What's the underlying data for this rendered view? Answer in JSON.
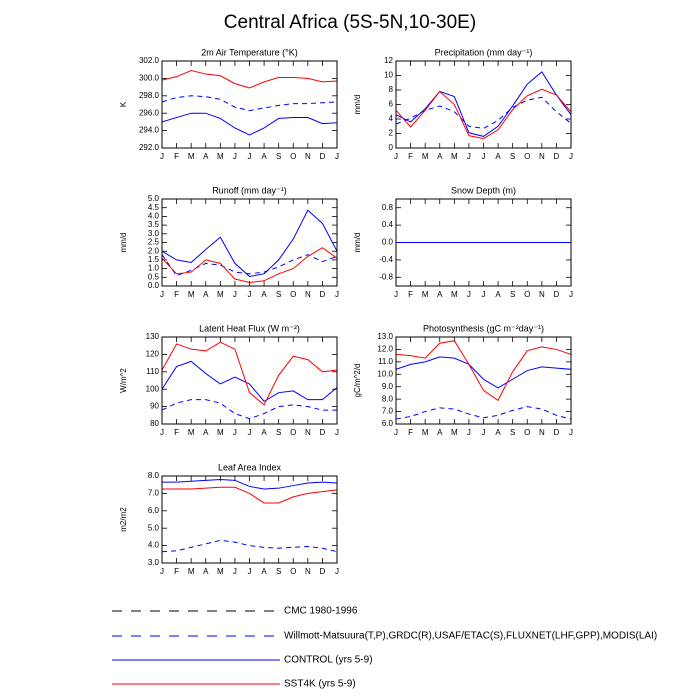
{
  "title": "Central Africa (5S-5N,10-30E)",
  "chart_data": [
    {
      "type": "line",
      "title": "2m Air Temperature (°K)",
      "ylabel": "K",
      "categories": [
        "J",
        "F",
        "M",
        "A",
        "M",
        "J",
        "J",
        "A",
        "S",
        "O",
        "N",
        "D",
        "J"
      ],
      "ylim": [
        292,
        302
      ],
      "yticks": [
        {
          "value": 292,
          "label": "292.0"
        },
        {
          "value": 294,
          "label": "294.0"
        },
        {
          "value": 296,
          "label": "296.0"
        },
        {
          "value": 298,
          "label": "298.0"
        },
        {
          "value": 300,
          "label": "300.0"
        },
        {
          "value": 302,
          "label": "302.0"
        }
      ],
      "series": [
        {
          "name": "Willmott-Matsuura(T,P),GRDC(R),USAF/ETAC(S),FLUXNET(LHF,GPP),MODIS(LAI)",
          "color": "#0000ff",
          "dash": true,
          "values": [
            297.3,
            297.8,
            298.0,
            297.9,
            297.6,
            296.7,
            296.3,
            296.6,
            296.9,
            297.1,
            297.1,
            297.2,
            297.3
          ]
        },
        {
          "name": "CONTROL (yrs 5-9)",
          "color": "#0000ff",
          "dash": false,
          "values": [
            295.0,
            295.5,
            296.0,
            296.0,
            295.4,
            294.3,
            293.5,
            294.3,
            295.4,
            295.5,
            295.5,
            294.8,
            294.9
          ]
        },
        {
          "name": "SST4K (yrs 5-9)",
          "color": "#ff0000",
          "dash": false,
          "values": [
            299.8,
            300.2,
            300.9,
            300.5,
            300.3,
            299.4,
            298.9,
            299.6,
            300.1,
            300.1,
            300.0,
            299.6,
            299.7
          ]
        }
      ]
    },
    {
      "type": "line",
      "title": "Precipitation (mm day⁻¹)",
      "ylabel": "mm/d",
      "categories": [
        "J",
        "F",
        "M",
        "A",
        "M",
        "J",
        "J",
        "A",
        "S",
        "O",
        "N",
        "D",
        "J"
      ],
      "ylim": [
        0,
        12
      ],
      "yticks": [
        0,
        2,
        4,
        6,
        8,
        10,
        12
      ],
      "series": [
        {
          "name": "Willmott-Matsuura(T,P),GRDC(R),USAF/ETAC(S),FLUXNET(LHF,GPP),MODIS(LAI)",
          "color": "#0000ff",
          "dash": true,
          "values": [
            3.3,
            4.1,
            5.2,
            5.8,
            5.0,
            3.0,
            2.7,
            3.8,
            5.6,
            6.6,
            7.0,
            5.0,
            3.4
          ]
        },
        {
          "name": "CONTROL (yrs 5-9)",
          "color": "#0000ff",
          "dash": false,
          "values": [
            4.6,
            3.6,
            5.4,
            7.8,
            7.1,
            2.1,
            1.6,
            3.0,
            5.8,
            8.8,
            10.5,
            7.3,
            4.6
          ]
        },
        {
          "name": "SST4K (yrs 5-9)",
          "color": "#ff0000",
          "dash": false,
          "values": [
            5.2,
            2.9,
            5.2,
            7.8,
            6.0,
            1.7,
            1.3,
            2.5,
            5.3,
            7.2,
            8.1,
            7.3,
            5.0
          ]
        }
      ]
    },
    {
      "type": "line",
      "title": "Runoff (mm day⁻¹)",
      "ylabel": "mm/d",
      "categories": [
        "J",
        "F",
        "M",
        "A",
        "M",
        "J",
        "J",
        "A",
        "S",
        "O",
        "N",
        "D",
        "J"
      ],
      "ylim": [
        0,
        5
      ],
      "yticks": [
        {
          "value": 0,
          "label": "0.0"
        },
        {
          "value": 0.5,
          "label": "0.5"
        },
        {
          "value": 1,
          "label": "1.0"
        },
        {
          "value": 1.5,
          "label": "1.5"
        },
        {
          "value": 2,
          "label": "2.0"
        },
        {
          "value": 2.5,
          "label": "2.5"
        },
        {
          "value": 3,
          "label": "3.0"
        },
        {
          "value": 3.5,
          "label": "3.5"
        },
        {
          "value": 4,
          "label": "4.0"
        },
        {
          "value": 4.5,
          "label": "4.5"
        },
        {
          "value": 5,
          "label": "5.0"
        }
      ],
      "series": [
        {
          "name": "Willmott-Matsuura(T,P),GRDC(R),USAF/ETAC(S),FLUXNET(LHF,GPP),MODIS(LAI)",
          "color": "#0000ff",
          "dash": true,
          "values": [
            1.8,
            0.6,
            0.9,
            1.3,
            1.2,
            0.8,
            0.7,
            0.8,
            1.1,
            1.5,
            1.8,
            1.4,
            1.7
          ]
        },
        {
          "name": "CONTROL (yrs 5-9)",
          "color": "#0000ff",
          "dash": false,
          "values": [
            2.0,
            1.5,
            1.35,
            2.1,
            2.8,
            1.3,
            0.55,
            0.7,
            1.5,
            2.7,
            4.35,
            3.6,
            2.0
          ]
        },
        {
          "name": "SST4K (yrs 5-9)",
          "color": "#ff0000",
          "dash": false,
          "values": [
            1.6,
            0.7,
            0.8,
            1.5,
            1.3,
            0.4,
            0.2,
            0.3,
            0.7,
            1.0,
            1.7,
            2.2,
            1.6
          ]
        }
      ]
    },
    {
      "type": "line",
      "title": "Snow Depth (m)",
      "ylabel": "mm/d",
      "categories": [
        "J",
        "F",
        "M",
        "A",
        "M",
        "J",
        "J",
        "A",
        "S",
        "O",
        "N",
        "D",
        "J"
      ],
      "ylim": [
        -1,
        1
      ],
      "yticks": [
        -0.8,
        -0.4,
        {
          "value": 0,
          "label": "0.0"
        },
        0.4,
        0.8
      ],
      "series": [
        {
          "name": "CMC 1980-1996",
          "color": "#000000",
          "dash": true,
          "values": [
            0,
            0,
            0,
            0,
            0,
            0,
            0,
            0,
            0,
            0,
            0,
            0,
            0
          ]
        },
        {
          "name": "CONTROL (yrs 5-9)",
          "color": "#ff0000",
          "dash": false,
          "values": [
            0,
            0,
            0,
            0,
            0,
            0,
            0,
            0,
            0,
            0,
            0,
            0,
            0
          ]
        },
        {
          "name": "SST4K (yrs 5-9)",
          "color": "#0000ff",
          "dash": false,
          "values": [
            0,
            0,
            0,
            0,
            0,
            0,
            0,
            0,
            0,
            0,
            0,
            0,
            0
          ]
        }
      ]
    },
    {
      "type": "line",
      "title": "Latent Heat Flux (W m⁻²)",
      "ylabel": "W/m^2",
      "categories": [
        "J",
        "F",
        "M",
        "A",
        "M",
        "J",
        "J",
        "A",
        "S",
        "O",
        "N",
        "D",
        "J"
      ],
      "ylim": [
        80,
        130
      ],
      "yticks": [
        80,
        90,
        100,
        110,
        120,
        130
      ],
      "series": [
        {
          "name": "Willmott-Matsuura(T,P),GRDC(R),USAF/ETAC(S),FLUXNET(LHF,GPP),MODIS(LAI)",
          "color": "#0000ff",
          "dash": true,
          "values": [
            88,
            92,
            94,
            94,
            92,
            86,
            83,
            86,
            90,
            91,
            90,
            88,
            88
          ]
        },
        {
          "name": "CONTROL (yrs 5-9)",
          "color": "#0000ff",
          "dash": false,
          "values": [
            100,
            113,
            116,
            109,
            103,
            107,
            103,
            93,
            98,
            99,
            94,
            94,
            101
          ]
        },
        {
          "name": "SST4K (yrs 5-9)",
          "color": "#ff0000",
          "dash": false,
          "values": [
            111,
            126,
            123,
            122,
            127,
            123,
            98,
            91,
            108,
            119,
            117,
            110,
            111
          ]
        }
      ]
    },
    {
      "type": "line",
      "title": "Photosynthesis (gC m⁻²day⁻¹)",
      "ylabel": "gC/m^2/d",
      "categories": [
        "J",
        "F",
        "M",
        "A",
        "M",
        "J",
        "J",
        "A",
        "S",
        "O",
        "N",
        "D",
        "J"
      ],
      "ylim": [
        6,
        13
      ],
      "yticks": [
        {
          "value": 6,
          "label": "6.0"
        },
        {
          "value": 7,
          "label": "7.0"
        },
        {
          "value": 8,
          "label": "8.0"
        },
        {
          "value": 9,
          "label": "9.0"
        },
        {
          "value": 10,
          "label": "10.0"
        },
        {
          "value": 11,
          "label": "11.0"
        },
        {
          "value": 12,
          "label": "12.0"
        },
        {
          "value": 13,
          "label": "13.0"
        }
      ],
      "series": [
        {
          "name": "Willmott-Matsuura(T,P),GRDC(R),USAF/ETAC(S),FLUXNET(LHF,GPP),MODIS(LAI)",
          "color": "#0000ff",
          "dash": true,
          "values": [
            6.4,
            6.6,
            7.0,
            7.3,
            7.2,
            6.8,
            6.5,
            6.7,
            7.1,
            7.4,
            7.2,
            6.7,
            6.4
          ]
        },
        {
          "name": "CONTROL (yrs 5-9)",
          "color": "#0000ff",
          "dash": false,
          "values": [
            10.4,
            10.8,
            11.0,
            11.4,
            11.3,
            10.8,
            9.6,
            8.9,
            9.6,
            10.3,
            10.6,
            10.5,
            10.4
          ]
        },
        {
          "name": "SST4K (yrs 5-9)",
          "color": "#ff0000",
          "dash": false,
          "values": [
            11.6,
            11.5,
            11.3,
            12.5,
            12.7,
            10.8,
            8.7,
            7.9,
            10.2,
            11.9,
            12.2,
            12.0,
            11.6
          ]
        }
      ]
    },
    {
      "type": "line",
      "title": "Leaf Area Index",
      "ylabel": "m2/m2",
      "categories": [
        "J",
        "F",
        "M",
        "A",
        "M",
        "J",
        "J",
        "A",
        "S",
        "O",
        "N",
        "D",
        "J"
      ],
      "ylim": [
        3,
        8
      ],
      "yticks": [
        {
          "value": 3,
          "label": "3.0"
        },
        {
          "value": 4,
          "label": "4.0"
        },
        {
          "value": 5,
          "label": "5.0"
        },
        {
          "value": 6,
          "label": "6.0"
        },
        {
          "value": 7,
          "label": "7.0"
        },
        {
          "value": 8,
          "label": "8.0"
        }
      ],
      "series": [
        {
          "name": "Willmott-Matsuura(T,P),GRDC(R),USAF/ETAC(S),FLUXNET(LHF,GPP),MODIS(LAI)",
          "color": "#0000ff",
          "dash": true,
          "values": [
            3.65,
            3.7,
            3.9,
            4.1,
            4.3,
            4.2,
            4.0,
            3.9,
            3.85,
            3.9,
            3.95,
            3.85,
            3.65
          ]
        },
        {
          "name": "CONTROL (yrs 5-9)",
          "color": "#0000ff",
          "dash": false,
          "values": [
            7.65,
            7.65,
            7.7,
            7.75,
            7.8,
            7.75,
            7.4,
            7.25,
            7.3,
            7.45,
            7.6,
            7.65,
            7.6
          ]
        },
        {
          "name": "SST4K (yrs 5-9)",
          "color": "#ff0000",
          "dash": false,
          "values": [
            7.25,
            7.25,
            7.25,
            7.3,
            7.35,
            7.35,
            7.0,
            6.45,
            6.45,
            6.8,
            7.0,
            7.1,
            7.2
          ]
        }
      ]
    }
  ]
}
